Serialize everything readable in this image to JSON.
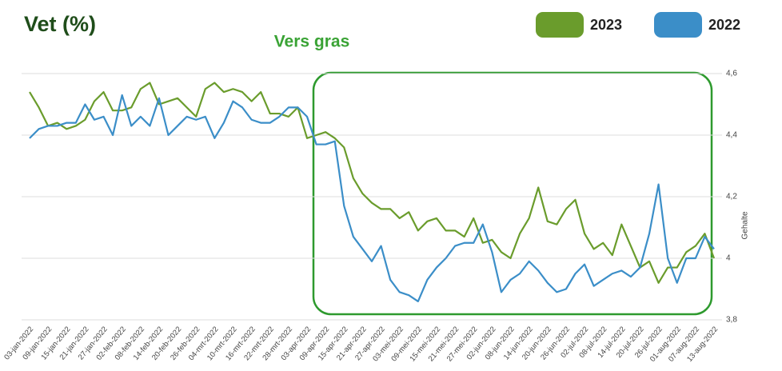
{
  "chart_data": {
    "type": "line",
    "title": "Vet (%)",
    "annotation": "Vers gras",
    "y_axis_label": "Gehalte",
    "categories": [
      "03-jan-2022",
      null,
      "09-jan-2022",
      null,
      "15-jan-2022",
      null,
      "21-jan-2022",
      null,
      "27-jan-2022",
      null,
      "02-feb-2022",
      null,
      "08-feb-2022",
      null,
      "14-feb-2022",
      null,
      "20-feb-2022",
      null,
      "26-feb-2022",
      null,
      "04-mrt-2022",
      null,
      "10-mrt-2022",
      null,
      "16-mrt-2022",
      null,
      "22-mrt-2022",
      null,
      "28-mrt-2022",
      null,
      "03-apr-2022",
      null,
      "09-apr-2022",
      null,
      "15-apr-2022",
      null,
      "21-apr-2022",
      null,
      "27-apr-2022",
      null,
      "03-mei-2022",
      null,
      "09-mei-2022",
      null,
      "15-mei-2022",
      null,
      "21-mei-2022",
      null,
      "27-mei-2022",
      null,
      "02-jun-2022",
      null,
      "08-jun-2022",
      null,
      "14-jun-2022",
      null,
      "20-jun-2022",
      null,
      "26-jun-2022",
      null,
      "02-jul-2022",
      null,
      "08-jul-2022",
      null,
      "14-jul-2022",
      null,
      "20-jul-2022",
      null,
      "26-jul-2022",
      null,
      "01-aug-2022",
      null,
      "07-aug-2022",
      null,
      "13-aug-2022"
    ],
    "series": [
      {
        "name": "2023",
        "color": "#6a9c2c",
        "values": [
          4.54,
          4.49,
          4.43,
          4.44,
          4.42,
          4.43,
          4.45,
          4.51,
          4.54,
          4.48,
          4.48,
          4.49,
          4.55,
          4.57,
          4.5,
          4.51,
          4.52,
          4.49,
          4.46,
          4.55,
          4.57,
          4.54,
          4.55,
          4.54,
          4.51,
          4.54,
          4.47,
          4.47,
          4.46,
          4.49,
          4.39,
          4.4,
          4.41,
          4.39,
          4.36,
          4.26,
          4.21,
          4.18,
          4.16,
          4.16,
          4.13,
          4.15,
          4.09,
          4.12,
          4.13,
          4.09,
          4.09,
          4.07,
          4.13,
          4.05,
          4.06,
          4.02,
          4.0,
          4.08,
          4.13,
          4.23,
          4.12,
          4.11,
          4.16,
          4.19,
          4.08,
          4.03,
          4.05,
          4.01,
          4.11,
          4.04,
          3.97,
          3.99,
          3.92,
          3.97,
          3.97,
          4.02,
          4.04,
          4.08,
          4.0
        ]
      },
      {
        "name": "2022",
        "color": "#3b8ec8",
        "values": [
          4.39,
          4.42,
          4.43,
          4.43,
          4.44,
          4.44,
          4.5,
          4.45,
          4.46,
          4.4,
          4.53,
          4.43,
          4.46,
          4.43,
          4.52,
          4.4,
          4.43,
          4.46,
          4.45,
          4.46,
          4.39,
          4.44,
          4.51,
          4.49,
          4.45,
          4.44,
          4.44,
          4.46,
          4.49,
          4.49,
          4.46,
          4.37,
          4.37,
          4.38,
          4.17,
          4.07,
          4.03,
          3.99,
          4.04,
          3.93,
          3.89,
          3.88,
          3.86,
          3.93,
          3.97,
          4.0,
          4.04,
          4.05,
          4.05,
          4.11,
          4.02,
          3.89,
          3.93,
          3.95,
          3.99,
          3.96,
          3.92,
          3.89,
          3.9,
          3.95,
          3.98,
          3.91,
          3.93,
          3.95,
          3.96,
          3.94,
          3.97,
          4.08,
          4.24,
          4.0,
          3.92,
          4.0,
          4.0,
          4.07,
          4.03
        ]
      }
    ],
    "ylim": [
      3.8,
      4.6
    ],
    "yticks": [
      {
        "value": 3.8,
        "label": "3,8"
      },
      4,
      {
        "value": 4.2,
        "label": "4,2"
      },
      {
        "value": 4.4,
        "label": "4,4"
      },
      {
        "value": 4.6,
        "label": "4,6"
      }
    ],
    "grid": true,
    "legend": "top-right"
  }
}
